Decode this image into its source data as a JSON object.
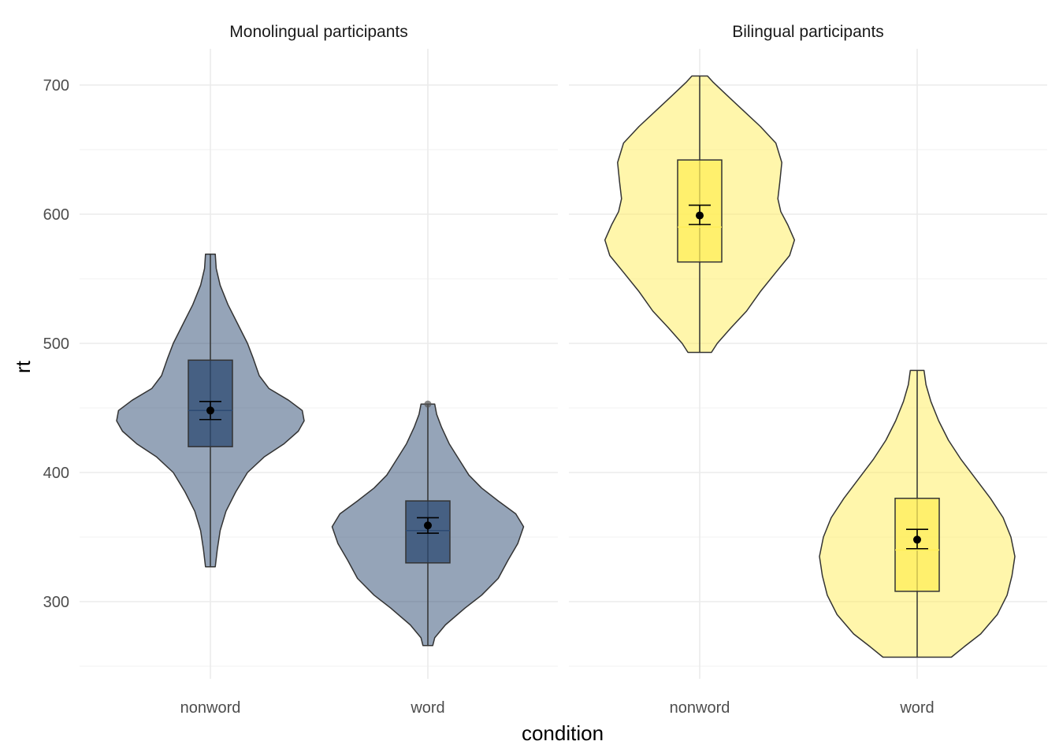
{
  "chart_data": {
    "type": "violin",
    "facets": [
      "Monolingual participants",
      "Bilingual participants"
    ],
    "categories": [
      "nonword",
      "word"
    ],
    "xlabel": "condition",
    "ylabel": "rt",
    "ylim": [
      235,
      730
    ],
    "yticks": [
      300,
      400,
      500,
      600,
      700
    ],
    "colors": {
      "Monolingual participants": "#2c4a72",
      "Bilingual participants": "#ffee58"
    },
    "groups": [
      {
        "facet": "Monolingual participants",
        "condition": "nonword",
        "violin_min": 327,
        "violin_max": 569,
        "density": [
          [
            327,
            0.05
          ],
          [
            340,
            0.07
          ],
          [
            355,
            0.1
          ],
          [
            370,
            0.16
          ],
          [
            385,
            0.26
          ],
          [
            400,
            0.38
          ],
          [
            412,
            0.55
          ],
          [
            422,
            0.75
          ],
          [
            432,
            0.9
          ],
          [
            440,
            0.96
          ],
          [
            448,
            0.94
          ],
          [
            456,
            0.8
          ],
          [
            465,
            0.6
          ],
          [
            475,
            0.5
          ],
          [
            488,
            0.44
          ],
          [
            500,
            0.38
          ],
          [
            515,
            0.28
          ],
          [
            530,
            0.18
          ],
          [
            545,
            0.1
          ],
          [
            558,
            0.06
          ],
          [
            569,
            0.05
          ]
        ],
        "box": {
          "q1": 420,
          "median": 448,
          "q3": 487
        },
        "outliers": [],
        "mean": 448,
        "ci": [
          441,
          455
        ]
      },
      {
        "facet": "Monolingual participants",
        "condition": "word",
        "violin_min": 266,
        "violin_max": 453,
        "density": [
          [
            266,
            0.05
          ],
          [
            272,
            0.07
          ],
          [
            282,
            0.18
          ],
          [
            295,
            0.38
          ],
          [
            305,
            0.55
          ],
          [
            318,
            0.72
          ],
          [
            332,
            0.82
          ],
          [
            345,
            0.92
          ],
          [
            358,
            0.98
          ],
          [
            368,
            0.9
          ],
          [
            378,
            0.72
          ],
          [
            388,
            0.55
          ],
          [
            398,
            0.42
          ],
          [
            410,
            0.32
          ],
          [
            422,
            0.22
          ],
          [
            435,
            0.14
          ],
          [
            445,
            0.09
          ],
          [
            453,
            0.07
          ]
        ],
        "box": {
          "q1": 330,
          "median": 355,
          "q3": 378
        },
        "outliers": [
          453
        ],
        "mean": 359,
        "ci": [
          353,
          365
        ]
      },
      {
        "facet": "Bilingual participants",
        "condition": "nonword",
        "violin_min": 493,
        "violin_max": 707,
        "density": [
          [
            493,
            0.12
          ],
          [
            500,
            0.18
          ],
          [
            512,
            0.32
          ],
          [
            525,
            0.48
          ],
          [
            540,
            0.62
          ],
          [
            555,
            0.78
          ],
          [
            568,
            0.92
          ],
          [
            580,
            0.97
          ],
          [
            592,
            0.9
          ],
          [
            602,
            0.83
          ],
          [
            612,
            0.8
          ],
          [
            625,
            0.82
          ],
          [
            640,
            0.84
          ],
          [
            655,
            0.78
          ],
          [
            668,
            0.62
          ],
          [
            680,
            0.45
          ],
          [
            692,
            0.28
          ],
          [
            702,
            0.14
          ],
          [
            707,
            0.08
          ]
        ],
        "box": {
          "q1": 563,
          "median": 590,
          "q3": 642
        },
        "outliers": [],
        "mean": 599,
        "ci": [
          592,
          607
        ]
      },
      {
        "facet": "Bilingual participants",
        "condition": "word",
        "violin_min": 257,
        "violin_max": 479,
        "density": [
          [
            257,
            0.35
          ],
          [
            265,
            0.48
          ],
          [
            275,
            0.65
          ],
          [
            290,
            0.82
          ],
          [
            305,
            0.92
          ],
          [
            320,
            0.97
          ],
          [
            335,
            1.0
          ],
          [
            350,
            0.96
          ],
          [
            365,
            0.88
          ],
          [
            380,
            0.75
          ],
          [
            395,
            0.6
          ],
          [
            410,
            0.45
          ],
          [
            425,
            0.32
          ],
          [
            440,
            0.22
          ],
          [
            455,
            0.14
          ],
          [
            468,
            0.09
          ],
          [
            479,
            0.07
          ]
        ],
        "box": {
          "q1": 308,
          "median": 340,
          "q3": 380
        },
        "outliers": [],
        "mean": 348,
        "ci": [
          341,
          356
        ]
      }
    ]
  }
}
